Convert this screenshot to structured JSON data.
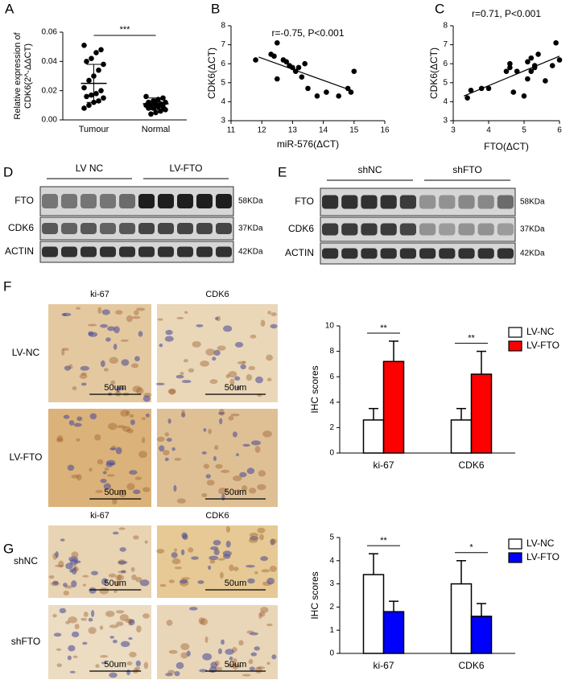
{
  "chart_data": [
    {
      "type": "dot",
      "panel": "A",
      "ylabel": [
        "Relative expression of",
        "CDK6(2^-ΔΔCT)"
      ],
      "categories": [
        "Tumour",
        "Normal"
      ],
      "points": [
        [
          0.051,
          0.048,
          0.046,
          0.042,
          0.04,
          0.038,
          0.034,
          0.03,
          0.027,
          0.022,
          0.02,
          0.018,
          0.017,
          0.016,
          0.015,
          0.013,
          0.012,
          0.01,
          0.008
        ],
        [
          0.016,
          0.015,
          0.014,
          0.013,
          0.012,
          0.012,
          0.011,
          0.011,
          0.01,
          0.01,
          0.009,
          0.009,
          0.008,
          0.008,
          0.007,
          0.006,
          0.005,
          0.004
        ]
      ],
      "means": [
        0.025,
        0.011
      ],
      "sds": [
        0.013,
        0.004
      ],
      "color": "#000000",
      "significance": "***",
      "ylim": [
        0,
        0.06
      ],
      "yticks": [
        {
          "value": 0,
          "label": "0.00"
        },
        {
          "value": 0.02,
          "label": "0.02"
        },
        {
          "value": 0.04,
          "label": "0.04"
        },
        {
          "value": 0.06,
          "label": "0.06"
        }
      ]
    },
    {
      "type": "scatter",
      "panel": "B",
      "annotation": "r=-0.75, P<0.001",
      "xlabel": "miR-576(ΔCT)",
      "ylabel": "CDK6(ΔCT)",
      "x": [
        11.8,
        12.3,
        12.4,
        12.5,
        12.5,
        12.7,
        12.8,
        12.9,
        13.0,
        13.1,
        13.2,
        13.3,
        13.4,
        13.5,
        13.8,
        14.1,
        14.5,
        14.8,
        14.9,
        15.0
      ],
      "y": [
        6.2,
        6.5,
        6.4,
        7.1,
        5.2,
        6.2,
        6.1,
        5.9,
        5.8,
        5.6,
        5.8,
        5.3,
        6.0,
        4.7,
        4.3,
        4.5,
        4.3,
        4.7,
        4.5,
        5.6
      ],
      "fit": {
        "x": [
          11.9,
          14.9
        ],
        "y": [
          6.35,
          4.6
        ]
      },
      "color": "#000000",
      "xlim": [
        11,
        16
      ],
      "xticks": [
        11,
        12,
        13,
        14,
        15,
        16
      ],
      "ylim": [
        3,
        8
      ],
      "yticks": [
        3,
        4,
        5,
        6,
        7,
        8
      ]
    },
    {
      "type": "scatter",
      "panel": "C",
      "annotation": "r=0.71, P<0.001",
      "xlabel": "FTO(ΔCT)",
      "ylabel": "CDK6(ΔCT)",
      "x": [
        3.4,
        3.5,
        3.8,
        4.0,
        4.5,
        4.6,
        4.6,
        4.7,
        4.8,
        5.0,
        5.1,
        5.1,
        5.2,
        5.2,
        5.3,
        5.3,
        5.4,
        5.6,
        5.8,
        5.9,
        6.0
      ],
      "y": [
        4.2,
        4.6,
        4.7,
        4.7,
        5.6,
        6.0,
        5.8,
        4.5,
        5.6,
        4.3,
        6.1,
        5.2,
        6.3,
        5.6,
        5.8,
        5.9,
        6.5,
        5.1,
        5.9,
        7.1,
        6.2
      ],
      "fit": {
        "x": [
          3.3,
          6.0
        ],
        "y": [
          4.3,
          6.4
        ]
      },
      "color": "#000000",
      "xlim": [
        3,
        6
      ],
      "xticks": [
        3,
        4,
        5,
        6
      ],
      "ylim": [
        3,
        8
      ],
      "yticks": [
        3,
        4,
        5,
        6,
        7,
        8
      ]
    },
    {
      "type": "bar",
      "panel": "F",
      "ylabel": "IHC scores",
      "categories": [
        "ki-67",
        "CDK6"
      ],
      "series": [
        {
          "name": "LV-NC",
          "color": "#ffffff",
          "values": [
            2.6,
            2.6
          ],
          "errors": [
            0.9,
            0.9
          ]
        },
        {
          "name": "LV-FTO",
          "color": "#ff0000",
          "values": [
            7.2,
            6.2
          ],
          "errors": [
            1.6,
            1.8
          ]
        }
      ],
      "significance": [
        "**",
        "**"
      ],
      "legend": "upper right",
      "ylim": [
        0,
        10
      ],
      "yticks": [
        0,
        2,
        4,
        6,
        8,
        10
      ]
    },
    {
      "type": "bar",
      "panel": "G",
      "ylabel": "IHC scores",
      "categories": [
        "ki-67",
        "CDK6"
      ],
      "series": [
        {
          "name": "LV-NC",
          "color": "#ffffff",
          "values": [
            3.4,
            3.0
          ],
          "errors": [
            0.9,
            1.0
          ]
        },
        {
          "name": "LV-FTO",
          "color": "#0000ff",
          "values": [
            1.8,
            1.6
          ],
          "errors": [
            0.45,
            0.55
          ]
        }
      ],
      "significance": [
        "**",
        "*"
      ],
      "legend": "upper right",
      "ylim": [
        0,
        5
      ],
      "yticks": [
        0,
        1,
        2,
        3,
        4,
        5
      ]
    }
  ],
  "blots": [
    {
      "panel": "D",
      "groups": [
        "LV NC",
        "LV-FTO"
      ],
      "rows": [
        "FTO",
        "CDK6",
        "ACTIN"
      ],
      "sizes": [
        "58KDa",
        "37KDa",
        "42KDa"
      ]
    },
    {
      "panel": "E",
      "groups": [
        "shNC",
        "shFTO"
      ],
      "rows": [
        "FTO",
        "CDK6",
        "ACTIN"
      ],
      "sizes": [
        "58KDa",
        "37KDa",
        "42KDa"
      ]
    }
  ],
  "ihc": [
    {
      "columns": [
        "ki-67",
        "CDK6"
      ],
      "rows": [
        "LV-NC",
        "LV-FTO"
      ],
      "scale": "50um"
    },
    {
      "columns": [
        "ki-67",
        "CDK6"
      ],
      "rows": [
        "shNC",
        "shFTO"
      ],
      "scale": "50um"
    }
  ]
}
